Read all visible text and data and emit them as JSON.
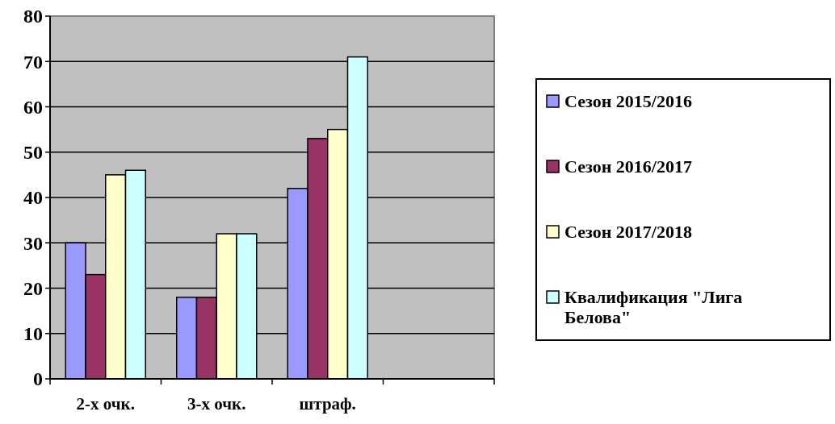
{
  "chart_data": {
    "type": "bar",
    "categories": [
      "2-х очк.",
      "3-х очк.",
      "штраф.",
      null
    ],
    "series": [
      {
        "name": "Сезон 2015/2016",
        "color": "#9999ff",
        "values": [
          30,
          18,
          42,
          null
        ]
      },
      {
        "name": "Сезон 2016/2017",
        "color": "#993366",
        "values": [
          23,
          18,
          53,
          null
        ]
      },
      {
        "name": "Сезон 2017/2018",
        "color": "#ffffcc",
        "values": [
          45,
          32,
          55,
          null
        ]
      },
      {
        "name": "Квалификация \"Лига Белова\"",
        "color": "#ccffff",
        "values": [
          46,
          32,
          71,
          null
        ]
      }
    ],
    "ylim": [
      0,
      80
    ],
    "yticks": [
      0,
      10,
      20,
      30,
      40,
      50,
      60,
      70,
      80
    ],
    "grid": "y",
    "legend": "right"
  }
}
